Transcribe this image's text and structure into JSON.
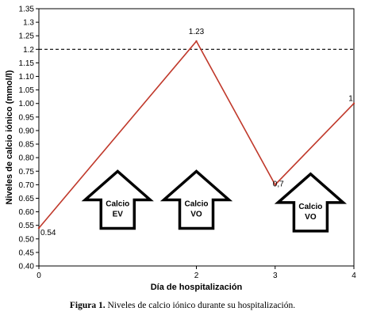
{
  "chart_data": {
    "type": "line",
    "x": [
      0,
      2,
      3,
      4
    ],
    "series": [
      {
        "values": [
          0.54,
          1.23,
          0.7,
          1.0
        ],
        "data_labels": [
          "0.54",
          "1.23",
          "0,7",
          "1"
        ],
        "color": "#c0392b"
      }
    ],
    "xlabel": "Día de hospitalización",
    "ylabel": "Niveles de calcio iónico  (mmol/l)",
    "xlim": [
      0,
      4
    ],
    "ylim": [
      0.4,
      1.35
    ],
    "xticks": [
      "0",
      "2",
      "3",
      "4"
    ],
    "yticks": [
      "0.40",
      "0.45",
      "0.50",
      "0.55",
      "0.60",
      "0.65",
      "0.70",
      "0.75",
      "0.80",
      "0.85",
      "0.90",
      "0.95",
      "1.00",
      "1.05",
      "1.10",
      "1.15",
      "1.2",
      "1.25",
      "1.3",
      "1.35"
    ],
    "reference_line": {
      "y": 1.2,
      "style": "dashed"
    },
    "annotations": [
      {
        "x": 1.0,
        "y": 0.615,
        "lines": [
          "Calcio",
          "EV"
        ]
      },
      {
        "x": 2.0,
        "y": 0.615,
        "lines": [
          "Calcio",
          "VO"
        ]
      },
      {
        "x": 3.45,
        "y": 0.605,
        "lines": [
          "Calcio",
          "VO"
        ]
      }
    ],
    "grid": false
  },
  "caption": {
    "label": "Figura 1.",
    "text": " Niveles de calcio iónico durante su hospitalización."
  }
}
